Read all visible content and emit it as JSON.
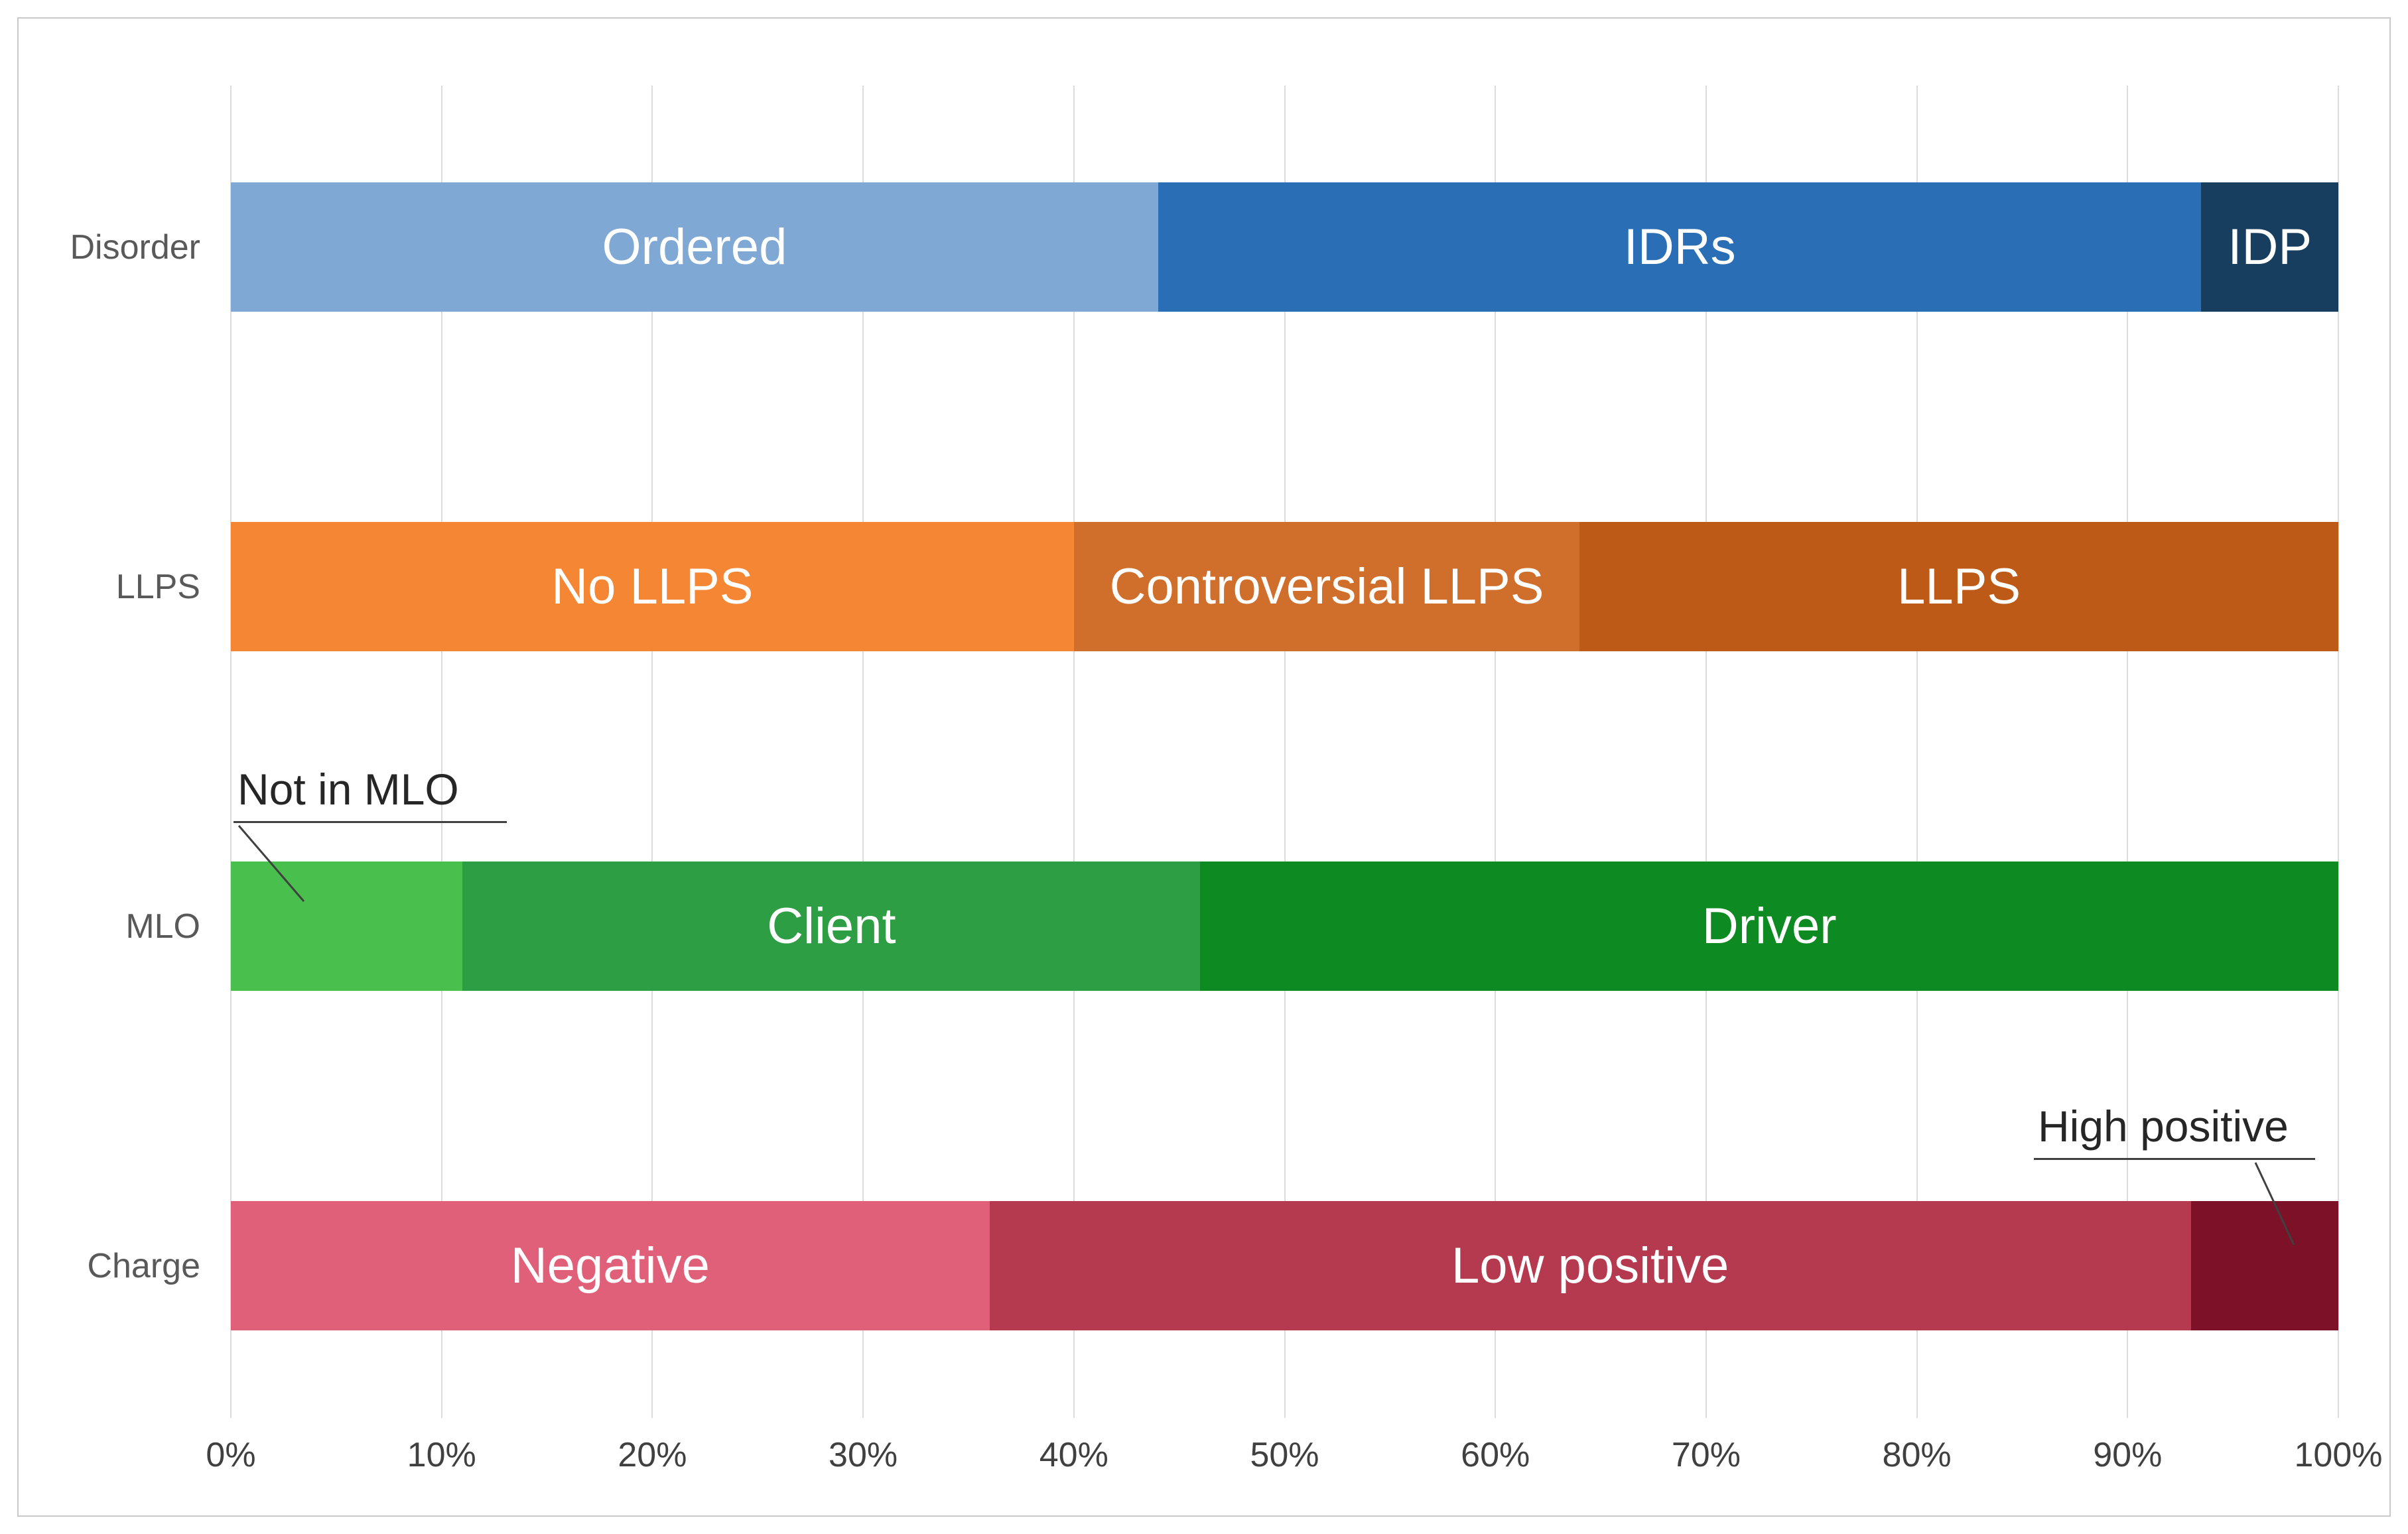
{
  "chart_data": {
    "type": "bar",
    "orientation": "horizontal",
    "stacked": true,
    "units": "percent",
    "xlim": [
      0,
      100
    ],
    "grid": "vertical-gridlines",
    "legend": "none",
    "x_ticks": [
      "0%",
      "10%",
      "20%",
      "30%",
      "40%",
      "50%",
      "60%",
      "70%",
      "80%",
      "90%",
      "100%"
    ],
    "categories": [
      "Disorder",
      "LLPS",
      "MLO",
      "Charge"
    ],
    "rows": [
      {
        "category": "Disorder",
        "segments": [
          {
            "label": "Ordered",
            "value": 44,
            "color": "#7FA8D4",
            "label_inside": true
          },
          {
            "label": "IDRs",
            "value": 49.5,
            "color": "#2A6FB5",
            "label_inside": true
          },
          {
            "label": "IDP",
            "value": 6.5,
            "color": "#173E5E",
            "label_inside": true
          }
        ]
      },
      {
        "category": "LLPS",
        "segments": [
          {
            "label": "No LLPS",
            "value": 40,
            "color": "#F58634",
            "label_inside": true
          },
          {
            "label": "Controversial LLPS",
            "value": 24,
            "color": "#D06E2B",
            "label_inside": true
          },
          {
            "label": "LLPS",
            "value": 36,
            "color": "#BD5A18",
            "label_inside": true
          }
        ]
      },
      {
        "category": "MLO",
        "segments": [
          {
            "label": "Not in MLO",
            "value": 11,
            "color": "#49BF4D",
            "label_inside": false
          },
          {
            "label": "Client",
            "value": 35,
            "color": "#2E9E44",
            "label_inside": true
          },
          {
            "label": "Driver",
            "value": 54,
            "color": "#0E8A22",
            "label_inside": true
          }
        ]
      },
      {
        "category": "Charge",
        "segments": [
          {
            "label": "Negative",
            "value": 36,
            "color": "#E0607A",
            "label_inside": true
          },
          {
            "label": "Low positive",
            "value": 57,
            "color": "#B53A50",
            "label_inside": true
          },
          {
            "label": "High positive",
            "value": 7,
            "color": "#7C1127",
            "label_inside": false
          }
        ]
      }
    ],
    "annotations": [
      {
        "text": "Not in MLO",
        "row": "MLO",
        "segment": "Not in MLO"
      },
      {
        "text": "High positive",
        "row": "Charge",
        "segment": "High positive"
      }
    ],
    "colors": {
      "bar_label_text": "#FFFFFF",
      "axis_tick_text": "#404040",
      "category_label_text": "#595959",
      "annotation_text": "#262626",
      "gridline": "#DCDCDC",
      "frame": "#C9C9C9",
      "background": "#FFFFFF"
    }
  }
}
